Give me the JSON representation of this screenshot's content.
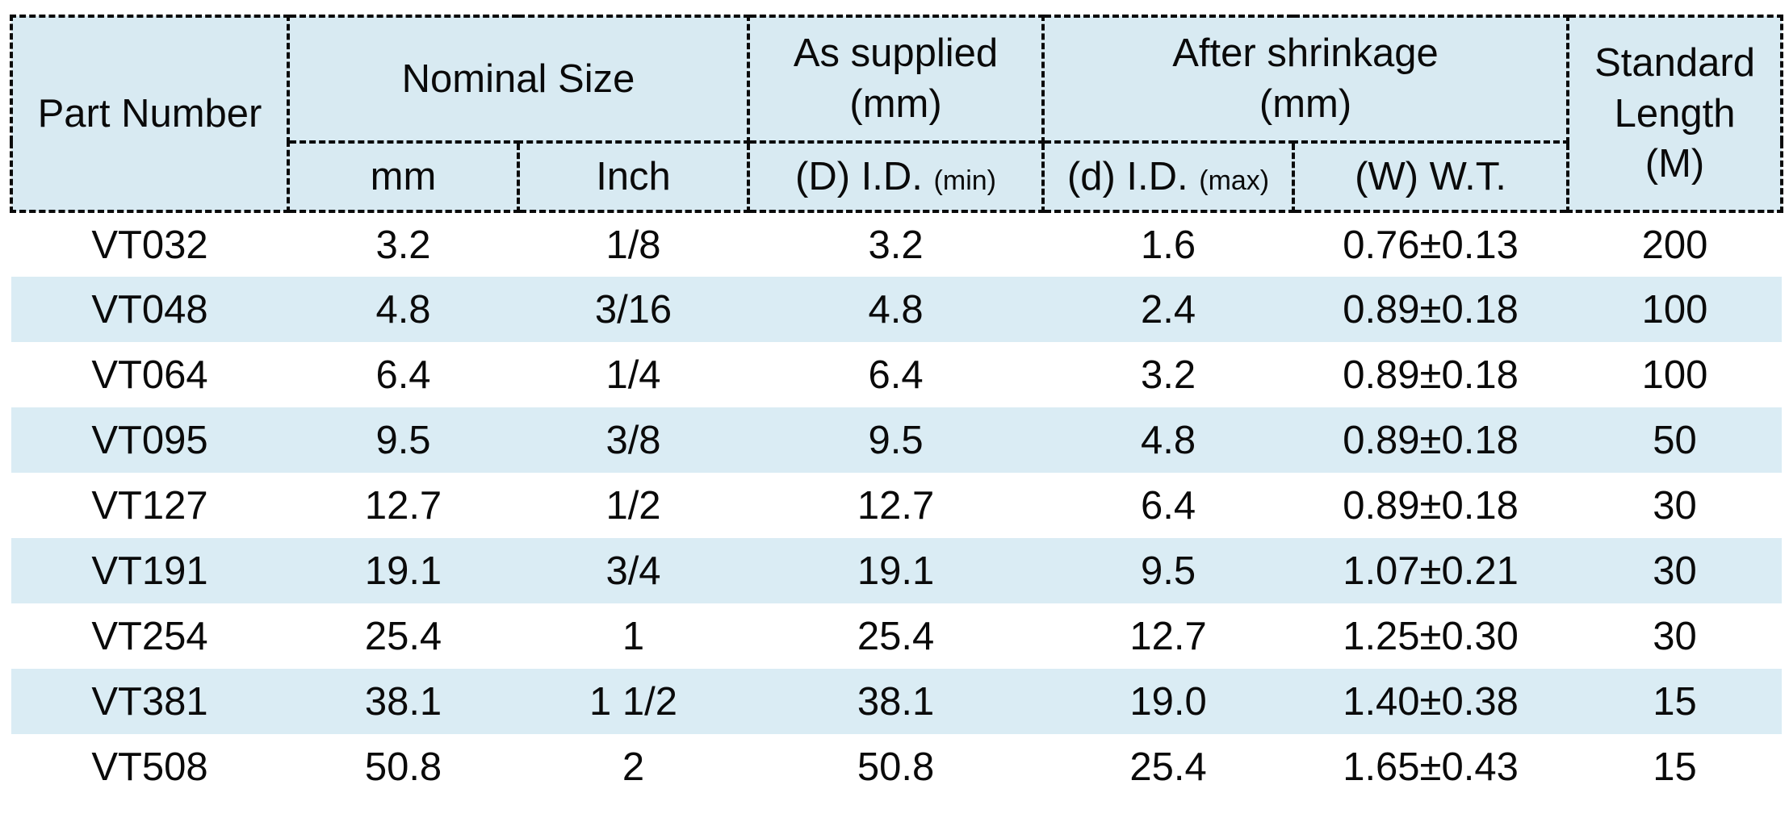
{
  "table": {
    "header": {
      "part_number": "Part Number",
      "nominal_size": "Nominal Size",
      "as_supplied": {
        "line1": "As supplied",
        "line2": "(mm)"
      },
      "after_shrinkage": {
        "line1": "After shrinkage",
        "line2": "(mm)"
      },
      "standard_length": {
        "line1": "Standard",
        "line2": "Length",
        "line3": "(M)"
      },
      "sub": {
        "mm": "mm",
        "inch": "Inch",
        "supplied_id": {
          "main": "(D) I.D.",
          "suffix": "(min)"
        },
        "shrunk_id": {
          "main": "(d) I.D.",
          "suffix": "(max)"
        },
        "wall_thickness": {
          "main": "(W) W.T.",
          "suffix": ""
        }
      }
    },
    "rows": [
      [
        "VT032",
        "3.2",
        "1/8",
        "3.2",
        "1.6",
        "0.76±0.13",
        "200"
      ],
      [
        "VT048",
        "4.8",
        "3/16",
        "4.8",
        "2.4",
        "0.89±0.18",
        "100"
      ],
      [
        "VT064",
        "6.4",
        "1/4",
        "6.4",
        "3.2",
        "0.89±0.18",
        "100"
      ],
      [
        "VT095",
        "9.5",
        "3/8",
        "9.5",
        "4.8",
        "0.89±0.18",
        "50"
      ],
      [
        "VT127",
        "12.7",
        "1/2",
        "12.7",
        "6.4",
        "0.89±0.18",
        "30"
      ],
      [
        "VT191",
        "19.1",
        "3/4",
        "19.1",
        "9.5",
        "1.07±0.21",
        "30"
      ],
      [
        "VT254",
        "25.4",
        "1",
        "25.4",
        "12.7",
        "1.25±0.30",
        "30"
      ],
      [
        "VT381",
        "38.1",
        "1 1/2",
        "38.1",
        "19.0",
        "1.40±0.38",
        "15"
      ],
      [
        "VT508",
        "50.8",
        "2",
        "50.8",
        "25.4",
        "1.65±0.43",
        "15"
      ]
    ],
    "colors": {
      "header_bg": "#d8eaf2",
      "stripe_bg": "#daecf4",
      "border": "#0a0a0a"
    }
  }
}
